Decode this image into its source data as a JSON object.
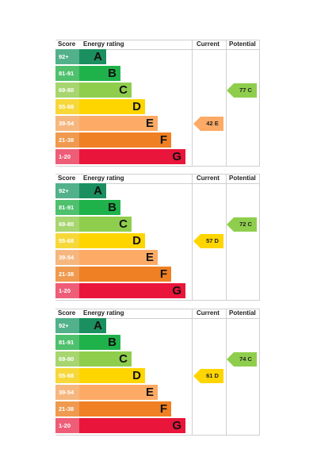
{
  "headers": {
    "score": "Score",
    "rating": "Energy rating",
    "current": "Current",
    "potential": "Potential"
  },
  "bands": [
    {
      "range": "92+",
      "letter": "A",
      "color": "#1b8f5f",
      "text_color": "#ffffff"
    },
    {
      "range": "81-91",
      "letter": "B",
      "color": "#1fb24b",
      "text_color": "#ffffff"
    },
    {
      "range": "69-80",
      "letter": "C",
      "color": "#8fce4d",
      "text_color": "#111111"
    },
    {
      "range": "55-68",
      "letter": "D",
      "color": "#ffd500",
      "text_color": "#111111"
    },
    {
      "range": "39-54",
      "letter": "E",
      "color": "#fcaa65",
      "text_color": "#111111"
    },
    {
      "range": "21-38",
      "letter": "F",
      "color": "#ef8023",
      "text_color": "#111111"
    },
    {
      "range": "1-20",
      "letter": "G",
      "color": "#e9153b",
      "text_color": "#111111"
    }
  ],
  "score_colors": [
    "#52b18b",
    "#4fc06d",
    "#a7d56f",
    "#f7d83a",
    "#f6b77f",
    "#ef9a4f",
    "#ee5d77"
  ],
  "chart_data": [
    {
      "type": "bar",
      "title": "",
      "categories": [
        "92+",
        "81-91",
        "69-80",
        "55-68",
        "39-54",
        "21-38",
        "1-20"
      ],
      "bands": [
        "A",
        "B",
        "C",
        "D",
        "E",
        "F",
        "G"
      ],
      "current": {
        "value": 42,
        "band": "E",
        "label": "42  E"
      },
      "potential": {
        "value": 77,
        "band": "C",
        "label": "77  C"
      }
    },
    {
      "type": "bar",
      "title": "",
      "categories": [
        "92+",
        "81-91",
        "69-80",
        "55-68",
        "39-54",
        "21-38",
        "1-20"
      ],
      "bands": [
        "A",
        "B",
        "C",
        "D",
        "E",
        "F",
        "G"
      ],
      "current": {
        "value": 57,
        "band": "D",
        "label": "57  D"
      },
      "potential": {
        "value": 72,
        "band": "C",
        "label": "72  C"
      }
    },
    {
      "type": "bar",
      "title": "",
      "categories": [
        "92+",
        "81-91",
        "69-80",
        "55-68",
        "39-54",
        "21-38",
        "1-20"
      ],
      "bands": [
        "A",
        "B",
        "C",
        "D",
        "E",
        "F",
        "G"
      ],
      "current": {
        "value": 61,
        "band": "D",
        "label": "61  D"
      },
      "potential": {
        "value": 74,
        "band": "C",
        "label": "74  C"
      }
    }
  ]
}
